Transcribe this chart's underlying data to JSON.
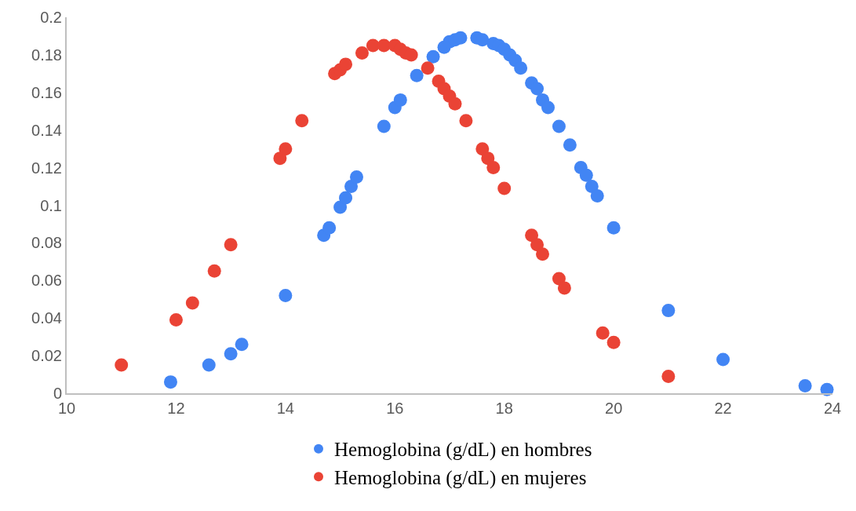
{
  "chart_data": {
    "type": "scatter",
    "marker": "circle",
    "grid": false,
    "legend": "bottom",
    "xlim": [
      10,
      24
    ],
    "xticks": [
      10,
      12,
      14,
      16,
      18,
      20,
      22,
      24
    ],
    "ylim": [
      0,
      0.2
    ],
    "yticks": [
      0,
      0.02,
      0.04,
      0.06,
      0.08,
      0.1,
      0.12,
      0.14,
      0.16,
      0.18,
      0.2
    ],
    "series": [
      {
        "name": "Hemoglobina (g/dL) en hombres",
        "color": "#4285f4",
        "x": [
          11.9,
          12.6,
          13.0,
          13.2,
          14.0,
          14.7,
          14.8,
          15.0,
          15.1,
          15.2,
          15.3,
          15.8,
          16.0,
          16.1,
          16.4,
          16.7,
          16.9,
          17.0,
          17.1,
          17.2,
          17.5,
          17.6,
          17.8,
          17.9,
          18.0,
          18.1,
          18.2,
          18.3,
          18.5,
          18.6,
          18.7,
          18.8,
          19.0,
          19.2,
          19.4,
          19.5,
          19.6,
          19.7,
          20.0,
          21.0,
          22.0,
          23.5,
          23.9
        ],
        "values": [
          0.006,
          0.015,
          0.021,
          0.026,
          0.052,
          0.084,
          0.088,
          0.099,
          0.104,
          0.11,
          0.115,
          0.142,
          0.152,
          0.156,
          0.169,
          0.179,
          0.184,
          0.187,
          0.188,
          0.189,
          0.189,
          0.188,
          0.186,
          0.185,
          0.183,
          0.18,
          0.177,
          0.173,
          0.165,
          0.162,
          0.156,
          0.152,
          0.142,
          0.132,
          0.12,
          0.116,
          0.11,
          0.105,
          0.088,
          0.044,
          0.018,
          0.004,
          0.002
        ]
      },
      {
        "name": "Hemoglobina (g/dL) en mujeres",
        "color": "#ea4335",
        "x": [
          11.0,
          12.0,
          12.3,
          12.7,
          13.0,
          13.9,
          14.0,
          14.3,
          14.9,
          15.0,
          15.1,
          15.4,
          15.6,
          15.8,
          16.0,
          16.1,
          16.2,
          16.3,
          16.6,
          16.8,
          16.9,
          17.0,
          17.1,
          17.3,
          17.6,
          17.7,
          17.8,
          18.0,
          18.5,
          18.6,
          18.7,
          19.0,
          19.1,
          19.8,
          20.0,
          21.0
        ],
        "values": [
          0.015,
          0.039,
          0.048,
          0.065,
          0.079,
          0.125,
          0.13,
          0.145,
          0.17,
          0.172,
          0.175,
          0.181,
          0.185,
          0.185,
          0.185,
          0.183,
          0.181,
          0.18,
          0.173,
          0.166,
          0.162,
          0.158,
          0.154,
          0.145,
          0.13,
          0.125,
          0.12,
          0.109,
          0.084,
          0.079,
          0.074,
          0.061,
          0.056,
          0.032,
          0.027,
          0.009
        ]
      }
    ]
  }
}
